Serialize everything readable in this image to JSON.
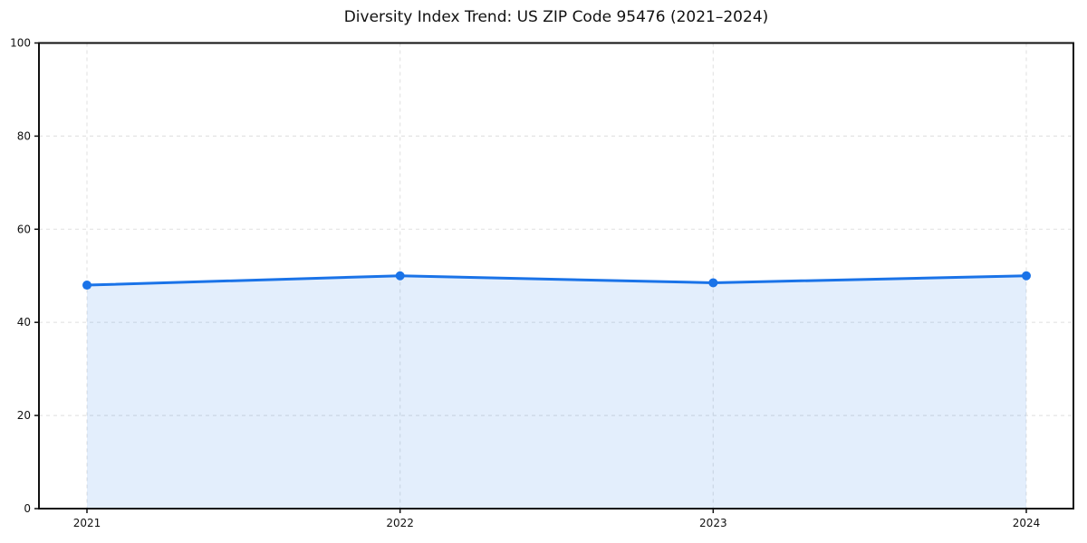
{
  "chart_data": {
    "type": "area",
    "title": "Diversity Index Trend: US ZIP Code 95476 (2021–2024)",
    "categories": [
      "2021",
      "2022",
      "2023",
      "2024"
    ],
    "series": [
      {
        "name": "Diversity Index",
        "values": [
          48,
          50,
          48.5,
          50
        ]
      }
    ],
    "xlabel": "",
    "ylabel": "",
    "ylim": [
      0,
      100
    ],
    "yticks": [
      0,
      20,
      40,
      60,
      80,
      100
    ],
    "grid": true,
    "legend": "none",
    "line_color": "#1a73e8",
    "marker_color": "#1a73e8",
    "fill_color": "#1a73e8",
    "fill_opacity": 0.12,
    "grid_color": "#e4e4e4",
    "axis_color": "#111111",
    "text_color": "#111111",
    "background_color": "#ffffff"
  }
}
